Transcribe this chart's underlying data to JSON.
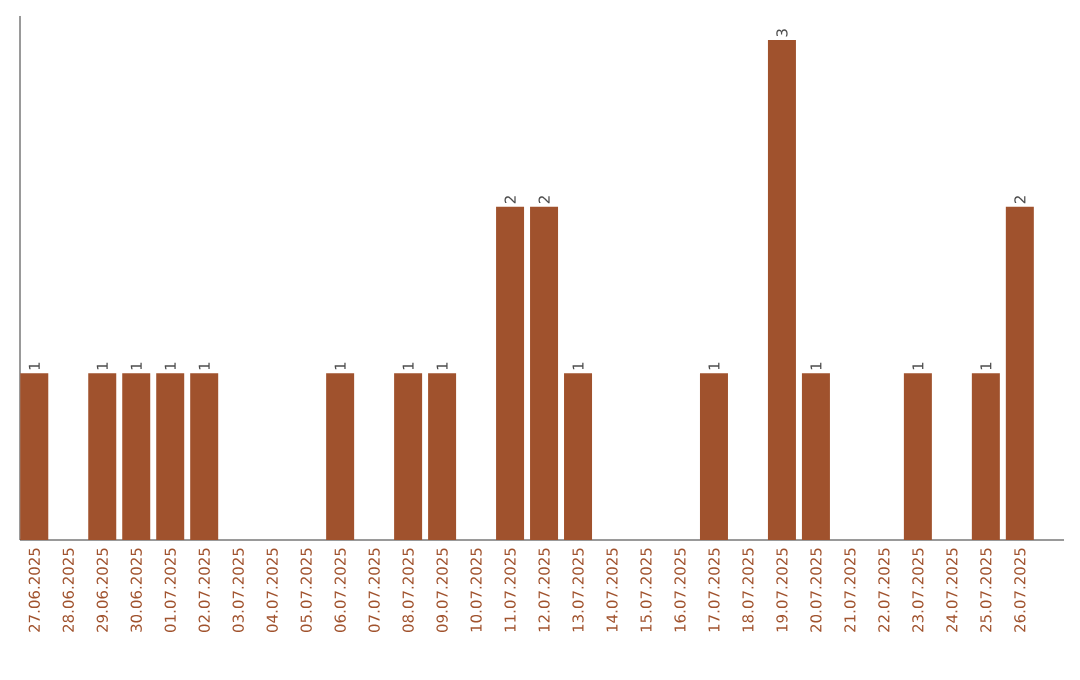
{
  "chart_data": {
    "type": "bar",
    "color": "#a0522d",
    "categories": [
      "27.06.2025",
      "28.06.2025",
      "29.06.2025",
      "30.06.2025",
      "01.07.2025",
      "02.07.2025",
      "03.07.2025",
      "04.07.2025",
      "05.07.2025",
      "06.07.2025",
      "07.07.2025",
      "08.07.2025",
      "09.07.2025",
      "10.07.2025",
      "11.07.2025",
      "12.07.2025",
      "13.07.2025",
      "14.07.2025",
      "15.07.2025",
      "16.07.2025",
      "17.07.2025",
      "18.07.2025",
      "19.07.2025",
      "20.07.2025",
      "21.07.2025",
      "22.07.2025",
      "23.07.2025",
      "24.07.2025",
      "25.07.2025",
      "26.07.2025"
    ],
    "values": [
      1,
      0,
      1,
      1,
      1,
      1,
      0,
      0,
      0,
      1,
      0,
      1,
      1,
      0,
      2,
      2,
      1,
      0,
      0,
      0,
      1,
      0,
      3,
      1,
      0,
      0,
      1,
      0,
      1,
      2
    ],
    "value_labels": [
      "1",
      null,
      "1",
      "1",
      "1",
      "1",
      null,
      null,
      null,
      "1",
      null,
      "1",
      "1",
      null,
      "2",
      "2",
      "1",
      null,
      null,
      null,
      "1",
      null,
      "3",
      "1",
      null,
      null,
      "1",
      null,
      "1",
      "2"
    ],
    "tick_labels": "x"
  }
}
